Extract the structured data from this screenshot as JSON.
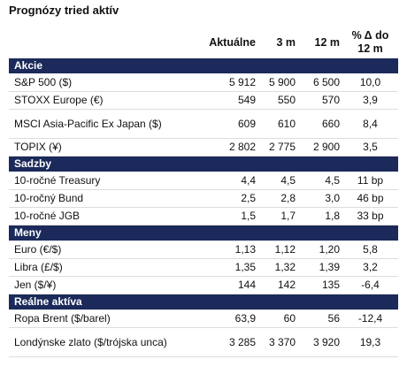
{
  "title": "Prognózy tried aktív",
  "header": [
    "Aktuálne",
    "3 m",
    "12 m",
    "% Δ do 12 m"
  ],
  "sections": [
    {
      "name": "Akcie",
      "rows": [
        [
          "S&P 500 ($)",
          "5 912",
          "5 900",
          "6 500",
          "10,0"
        ],
        [
          "STOXX Europe (€)",
          "549",
          "550",
          "570",
          "3,9"
        ],
        [
          "MSCI Asia-Pacific Ex Japan ($)",
          "609",
          "610",
          "660",
          "8,4"
        ],
        [
          "TOPIX (¥)",
          "2 802",
          "2 775",
          "2 900",
          "3,5"
        ]
      ]
    },
    {
      "name": "Sadzby",
      "rows": [
        [
          "10-ročné Treasury",
          "4,4",
          "4,5",
          "4,5",
          "11 bp"
        ],
        [
          "10-ročný Bund",
          "2,5",
          "2,8",
          "3,0",
          "46 bp"
        ],
        [
          "10-ročné JGB",
          "1,5",
          "1,7",
          "1,8",
          "33 bp"
        ]
      ]
    },
    {
      "name": "Meny",
      "rows": [
        [
          "Euro (€/$)",
          "1,13",
          "1,12",
          "1,20",
          "5,8"
        ],
        [
          "Libra (£/$)",
          "1,35",
          "1,32",
          "1,39",
          "3,2"
        ],
        [
          "Jen ($/¥)",
          "144",
          "142",
          "135",
          "-6,4"
        ]
      ]
    },
    {
      "name": "Reálne aktíva",
      "rows": [
        [
          "Ropa Brent ($/barel)",
          "63,9",
          "60",
          "56",
          "-12,4"
        ],
        [
          "Londýnske zlato ($/trójska unca)",
          "3 285",
          "3 370",
          "3 920",
          "19,3"
        ]
      ]
    }
  ]
}
